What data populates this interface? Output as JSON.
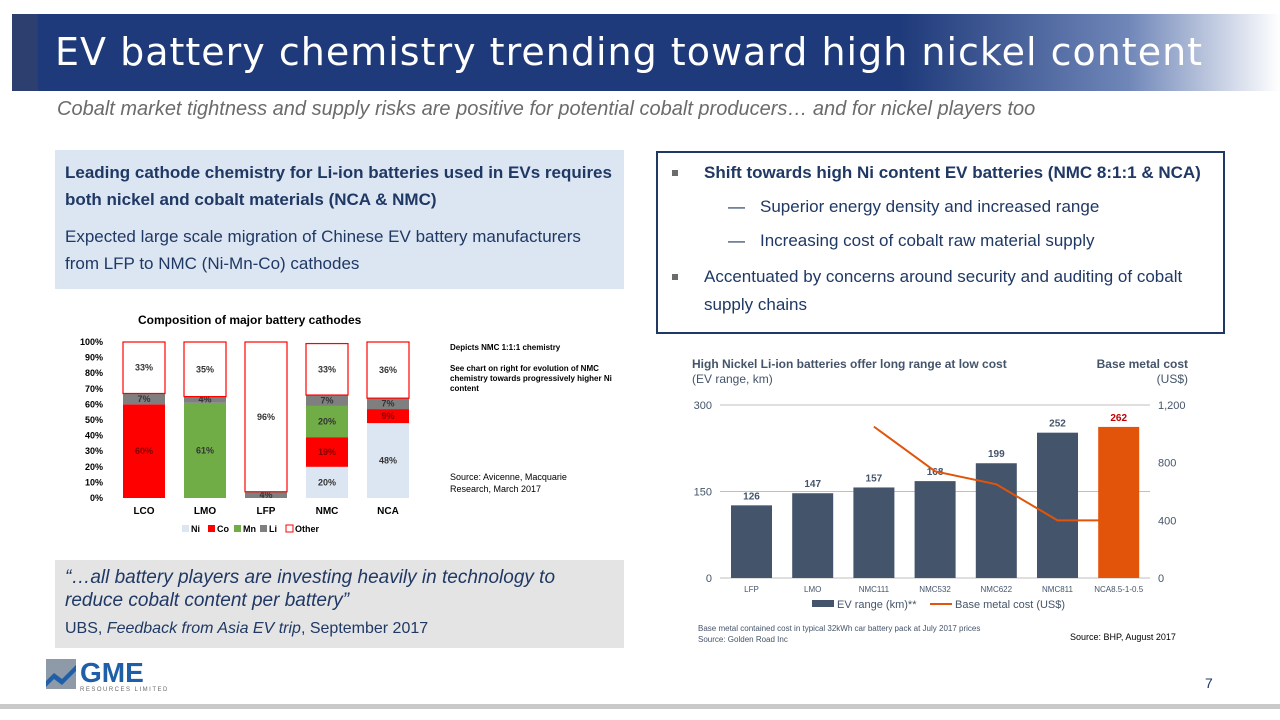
{
  "slide": {
    "title": "EV battery chemistry trending toward high nickel content",
    "subtitle": "Cobalt market tightness and supply risks are positive for potential cobalt producers… and for nickel players too",
    "page_number": "7"
  },
  "left_box": {
    "bold_text": "Leading cathode chemistry for Li-ion batteries used in EVs requires both nickel and cobalt materials (NCA & NMC)",
    "body_text": "Expected large scale migration of Chinese EV battery manufacturers from LFP to NMC (Ni-Mn-Co) cathodes"
  },
  "right_box": {
    "bullet1": "Shift towards high Ni content EV batteries (NMC 8:1:1 & NCA)",
    "sub1": "Superior energy density and increased range",
    "sub2": "Increasing cost of cobalt raw material supply",
    "dash": "—",
    "bullet2": "Accentuated by concerns around security and auditing of cobalt supply chains"
  },
  "quote": {
    "text": "“…all battery players are investing heavily in technology to reduce cobalt content per battery”",
    "source_prefix": "UBS, ",
    "source_italic": "Feedback from Asia EV trip",
    "source_suffix": ", September 2017"
  },
  "chart1_notes": {
    "note1": "Depicts NMC 1:1:1 chemistry",
    "note2": "See chart on right for evolution of NMC chemistry towards progressively higher Ni content",
    "source": "Source: Avicenne, Macquarie Research, March 2017"
  },
  "chart2_notes": {
    "footnote1": "Base metal contained cost in typical 32kWh car battery pack at July 2017 prices",
    "footnote2": "Source: Golden Road Inc",
    "source": "Source: BHP, August 2017"
  },
  "logo": {
    "name": "GME",
    "tagline": "RESOURCES LIMITED"
  },
  "colors": {
    "navy": "#1f3864",
    "ni": "#ff0000",
    "co": "#ffffff",
    "mn": "#70ad47",
    "li": "#7f7f7f",
    "bar": "#44546a",
    "bar_highlight": "#e2540a",
    "line": "#e2540a"
  },
  "chart_data": [
    {
      "type": "bar",
      "stacked": true,
      "title": "Composition of major battery cathodes",
      "categories": [
        "LCO",
        "LMO",
        "LFP",
        "NMC",
        "NCA"
      ],
      "y_tick_labels": [
        "0%",
        "10%",
        "20%",
        "30%",
        "40%",
        "50%",
        "60%",
        "70%",
        "80%",
        "90%",
        "100%"
      ],
      "ylim": [
        0,
        100
      ],
      "legend_placement": "bottom",
      "series": [
        {
          "name": "Ni",
          "color": "#ff0000",
          "values": [
            null,
            null,
            null,
            20,
            48
          ],
          "labels": [
            "",
            "",
            "",
            "20%",
            "48%"
          ],
          "ni_override": [
            0,
            0,
            0,
            0,
            0
          ]
        },
        {
          "name": "Co",
          "color": "#ff0000",
          "values": [
            60,
            null,
            null,
            19,
            9
          ],
          "labels": [
            "60%",
            "",
            "",
            "19%",
            "9%"
          ]
        },
        {
          "name": "Mn",
          "color": "#70ad47",
          "values": [
            null,
            61,
            null,
            20,
            null
          ],
          "labels": [
            "",
            "61%",
            "",
            "20%",
            ""
          ]
        },
        {
          "name": "Li",
          "color": "#7f7f7f",
          "values": [
            7,
            4,
            4,
            7,
            7
          ],
          "labels": [
            "7%",
            "4%",
            "4%",
            "7%",
            "7%"
          ]
        },
        {
          "name": "Other",
          "color": "#ffffff",
          "values": [
            33,
            35,
            96,
            33,
            36
          ],
          "labels": [
            "33%",
            "35%",
            "96%",
            "33%",
            "36%"
          ]
        }
      ]
    },
    {
      "type": "bar",
      "title": "High Nickel Li-ion batteries offer long range at low cost",
      "subtitle": "(EV range, km)",
      "right_title": "Base metal cost",
      "right_subtitle": "(US$)",
      "categories": [
        "LFP",
        "LMO",
        "NMC111",
        "NMC532",
        "NMC622",
        "NMC811",
        "NCA8.5-1-0.5"
      ],
      "left_ticks": [
        "0",
        "150",
        "300"
      ],
      "right_ticks": [
        "0",
        "400",
        "800",
        "1,200"
      ],
      "ylim": [
        0,
        300
      ],
      "y2lim": [
        0,
        1200
      ],
      "legend_placement": "bottom",
      "series": [
        {
          "name": "EV range (km)**",
          "type": "bar",
          "values": [
            126,
            147,
            157,
            168,
            199,
            252,
            262
          ],
          "labels": [
            "126",
            "147",
            "157",
            "168",
            "199",
            "252",
            "262"
          ]
        },
        {
          "name": "Base metal cost (US$)",
          "type": "line",
          "axis": "right",
          "values": [
            null,
            null,
            1050,
            740,
            650,
            400,
            400
          ]
        }
      ]
    }
  ]
}
